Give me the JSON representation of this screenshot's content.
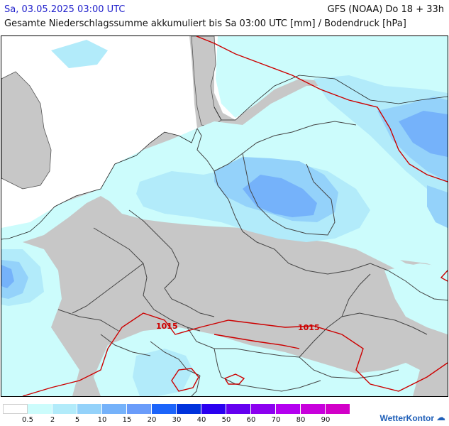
{
  "header": {
    "valid_time": "Sa, 03.05.2025 03:00 UTC",
    "model_run": "GFS (NOAA) Do 18 + 33h",
    "title": "Gesamte Niederschlagssumme akkumuliert bis Sa 03:00 UTC [mm] / Bodendruck [hPa]"
  },
  "map": {
    "region": "Central Europe",
    "isobar_labels": [
      {
        "value": "1015",
        "color": "#cc0000"
      },
      {
        "value": "1015",
        "color": "#cc0000"
      }
    ],
    "colors": {
      "land_no_precip": "#c7c7c7",
      "sea_no_precip": "#ffffff",
      "borders": "#444444",
      "isobar": "#cc0000"
    }
  },
  "legend": {
    "swatches": [
      {
        "color": "#ffffff"
      },
      {
        "color": "#ccfcfc"
      },
      {
        "color": "#b2ebfa"
      },
      {
        "color": "#94d2fa"
      },
      {
        "color": "#75b2fa"
      },
      {
        "color": "#6a9cfa"
      },
      {
        "color": "#1c64fa"
      },
      {
        "color": "#0032dc"
      },
      {
        "color": "#2a00f0"
      },
      {
        "color": "#6400f0"
      },
      {
        "color": "#8c00f0"
      },
      {
        "color": "#b400f0"
      },
      {
        "color": "#c800dc"
      },
      {
        "color": "#d200c8"
      }
    ],
    "labels": [
      "0.5",
      "2",
      "5",
      "10",
      "15",
      "20",
      "30",
      "40",
      "50",
      "60",
      "70",
      "80",
      "90"
    ]
  },
  "brand": {
    "name": "WetterKontor",
    "icon": "cloud-icon"
  }
}
